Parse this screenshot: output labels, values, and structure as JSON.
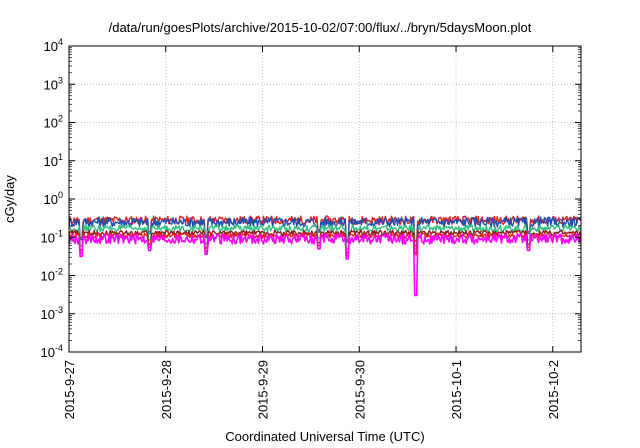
{
  "chart_data": {
    "type": "line",
    "title": "/data/run/goesPlots/archive/2015-10-02/07:00/flux/../bryn/5daysMoon.plot",
    "xlabel": "Coordinated Universal Time (UTC)",
    "ylabel": "cGy/day",
    "yscale": "log",
    "ylim": [
      0.0001,
      10000
    ],
    "y_ticks": [
      {
        "value": 0.0001,
        "base": "10",
        "exp": "-4"
      },
      {
        "value": 0.001,
        "base": "10",
        "exp": "-3"
      },
      {
        "value": 0.01,
        "base": "10",
        "exp": "-2"
      },
      {
        "value": 0.1,
        "base": "10",
        "exp": "-1"
      },
      {
        "value": 1,
        "base": "10",
        "exp": "0"
      },
      {
        "value": 10,
        "base": "10",
        "exp": "1"
      },
      {
        "value": 100,
        "base": "10",
        "exp": "2"
      },
      {
        "value": 1000,
        "base": "10",
        "exp": "3"
      },
      {
        "value": 10000,
        "base": "10",
        "exp": "4"
      }
    ],
    "xlim": [
      "2015-09-27T00:00",
      "2015-10-02T07:00"
    ],
    "x_ticks": [
      "2015-9-27",
      "2015-9-28",
      "2015-9-29",
      "2015-9-30",
      "2015-10-1",
      "2015-10-2"
    ],
    "grid": true,
    "series": [
      {
        "color": "#e0201c",
        "base": 0.28,
        "dip": 0.08,
        "noise": 0.25
      },
      {
        "color": "#1f4fb0",
        "base": 0.25,
        "dip": 0.06,
        "noise": 0.3
      },
      {
        "color": "#2ec27e",
        "base": 0.17,
        "dip": 0.05,
        "noise": 0.2
      },
      {
        "color": "#8b1c1c",
        "base": 0.13,
        "dip": 0.04,
        "noise": 0.15
      },
      {
        "color": "#e0201c",
        "base": 0.11,
        "dip": 0.035,
        "noise": 0.15
      },
      {
        "color": "#ff00ff",
        "base": 0.09,
        "dip": 0.003,
        "noise": 0.3
      }
    ],
    "key_times": [
      {
        "t": "2015-09-27T03:00",
        "factor": 0.35
      },
      {
        "t": "2015-09-27T20:00",
        "factor": 0.5
      },
      {
        "t": "2015-09-28T10:00",
        "factor": 0.4
      },
      {
        "t": "2015-09-29T14:00",
        "factor": 0.55
      },
      {
        "t": "2015-09-29T21:00",
        "factor": 0.3
      },
      {
        "t": "2015-09-30T14:00",
        "factor": 0.0
      },
      {
        "t": "2015-10-01T18:00",
        "factor": 0.5
      }
    ]
  }
}
